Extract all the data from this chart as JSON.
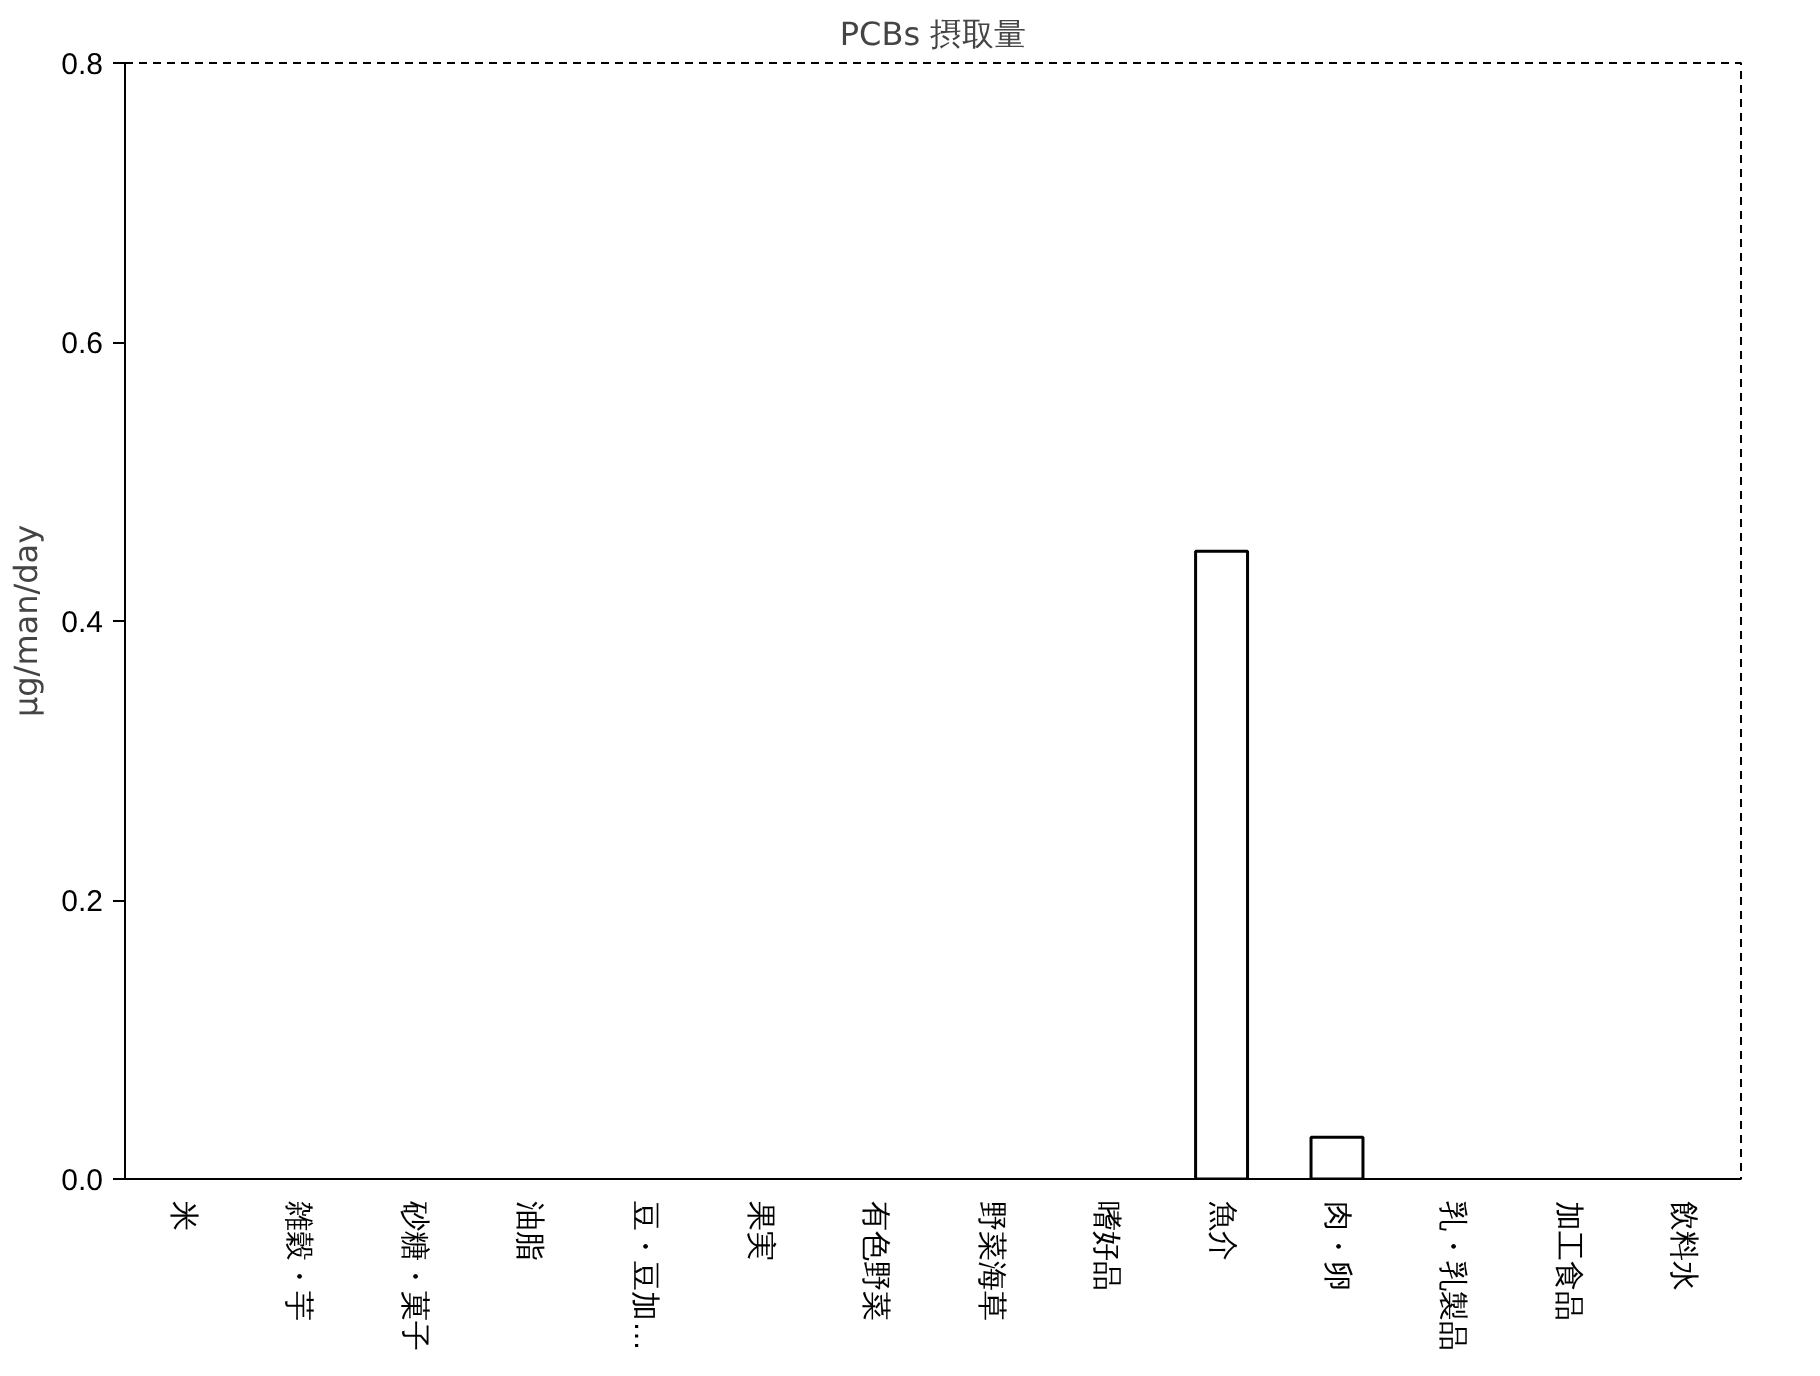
{
  "chart_data": {
    "type": "bar",
    "title": "PCBs 摂取量",
    "ylabel": "μg/man/day",
    "categories": [
      "米",
      "雑穀・芋",
      "砂糖・菓子",
      "油脂",
      "豆・豆加…",
      "果実",
      "有色野菜",
      "野菜海草",
      "嗜好品",
      "魚介",
      "肉・卵",
      "乳・乳製品",
      "加工食品",
      "飲料水"
    ],
    "values": [
      0,
      0,
      0,
      0,
      0,
      0,
      0,
      0,
      0,
      0.45,
      0.03,
      0,
      0,
      0
    ],
    "color": "#ffffff",
    "ylim": [
      0,
      0.8
    ],
    "yticks": [
      {
        "value": 0,
        "label": "0.0"
      },
      0.2,
      0.4,
      0.6,
      0.8
    ],
    "grid": false
  }
}
